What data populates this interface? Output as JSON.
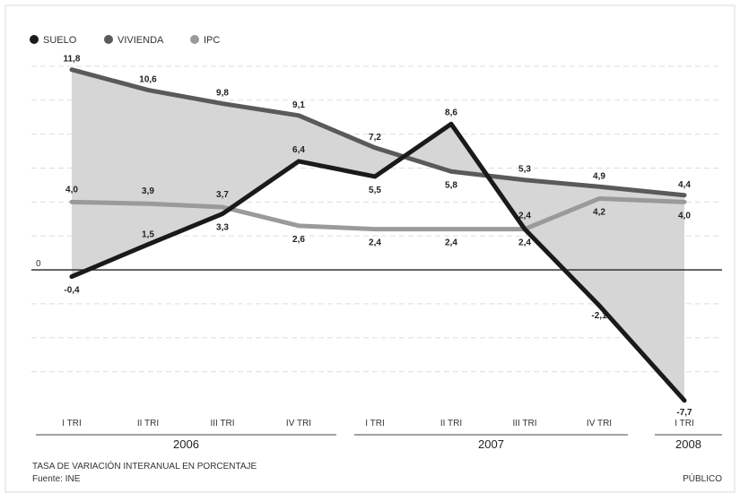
{
  "legend": [
    {
      "name": "SUELO",
      "color": "#1a1a1a"
    },
    {
      "name": "VIVIENDA",
      "color": "#5a5a5a"
    },
    {
      "name": "IPC",
      "color": "#9a9a9a"
    }
  ],
  "chart_data": {
    "type": "line",
    "categories": [
      "I TRI",
      "II TRI",
      "III TRI",
      "IV TRI",
      "I TRI",
      "II TRI",
      "III TRI",
      "IV TRI",
      "I TRI"
    ],
    "year_groups": [
      {
        "label": "2006",
        "start": 0,
        "end": 3
      },
      {
        "label": "2007",
        "start": 4,
        "end": 7
      },
      {
        "label": "2008",
        "start": 8,
        "end": 8
      }
    ],
    "series": [
      {
        "name": "SUELO",
        "color": "#1a1a1a",
        "values": [
          -0.4,
          1.5,
          3.3,
          6.4,
          5.5,
          8.6,
          2.4,
          -2.1,
          -7.7
        ],
        "labels": [
          "-0,4",
          "1,5",
          "3,3",
          "6,4",
          "5,5",
          "8,6",
          "2,4",
          "-2,1",
          "-7,7"
        ]
      },
      {
        "name": "VIVIENDA",
        "color": "#5a5a5a",
        "values": [
          11.8,
          10.6,
          9.8,
          9.1,
          7.2,
          5.8,
          5.3,
          4.9,
          4.4
        ],
        "labels": [
          "11,8",
          "10,6",
          "9,8",
          "9,1",
          "7,2",
          "5,8",
          "5,3",
          "4,9",
          "4,4"
        ]
      },
      {
        "name": "IPC",
        "color": "#9a9a9a",
        "values": [
          4.0,
          3.9,
          3.7,
          2.6,
          2.4,
          2.4,
          2.4,
          4.2,
          4.0
        ],
        "labels": [
          "4,0",
          "3,9",
          "3,7",
          "2,6",
          "2,4",
          "2,4",
          "2,4",
          "4,2",
          "4,0"
        ]
      }
    ],
    "area_under": "VIVIENDA",
    "zero_label": "0",
    "ylim": [
      -8.4,
      13.0
    ],
    "grid": true,
    "legend_position": "top-left"
  },
  "footer": {
    "note": "TASA DE VARIACIÓN INTERANUAL EN PORCENTAJE",
    "source": "Fuente: INE",
    "credit": "PÚBLICO"
  }
}
